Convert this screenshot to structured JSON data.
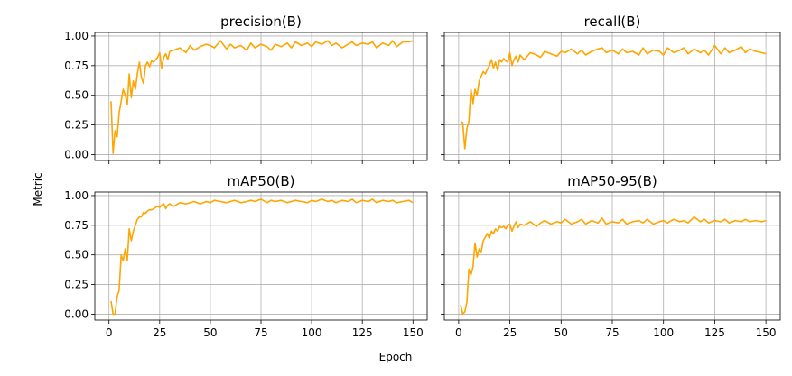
{
  "figure": {
    "xlabel": "Epoch",
    "ylabel": "Metric"
  },
  "chart_data": [
    {
      "type": "line",
      "title": "precision(B)",
      "xlim": [
        -7,
        157
      ],
      "ylim": [
        -0.05,
        1.03
      ],
      "xticks": [
        0,
        25,
        50,
        75,
        100,
        125,
        150
      ],
      "yticks": [
        "0.00",
        "0.25",
        "0.50",
        "0.75",
        "1.00"
      ],
      "show_xticklabels": false,
      "show_yticklabels": true,
      "grid": true,
      "line_color": "#FFA500",
      "x": [
        1,
        2,
        3,
        4,
        5,
        6,
        7,
        8,
        9,
        10,
        11,
        12,
        13,
        14,
        15,
        16,
        17,
        18,
        19,
        20,
        21,
        22,
        23,
        24,
        25,
        26,
        27,
        28,
        29,
        30,
        32,
        35,
        38,
        40,
        42,
        45,
        48,
        50,
        52,
        55,
        58,
        60,
        62,
        65,
        68,
        70,
        72,
        75,
        78,
        80,
        82,
        85,
        88,
        90,
        92,
        95,
        98,
        100,
        102,
        105,
        108,
        110,
        112,
        115,
        118,
        120,
        122,
        125,
        128,
        130,
        132,
        135,
        138,
        140,
        142,
        145,
        148,
        150
      ],
      "y": [
        0.45,
        0.01,
        0.2,
        0.15,
        0.35,
        0.45,
        0.55,
        0.5,
        0.42,
        0.68,
        0.48,
        0.62,
        0.55,
        0.68,
        0.78,
        0.65,
        0.6,
        0.75,
        0.78,
        0.74,
        0.79,
        0.78,
        0.8,
        0.82,
        0.86,
        0.73,
        0.82,
        0.85,
        0.8,
        0.87,
        0.88,
        0.9,
        0.86,
        0.92,
        0.88,
        0.91,
        0.93,
        0.92,
        0.9,
        0.96,
        0.89,
        0.93,
        0.9,
        0.92,
        0.88,
        0.94,
        0.9,
        0.93,
        0.91,
        0.88,
        0.93,
        0.91,
        0.94,
        0.9,
        0.95,
        0.92,
        0.94,
        0.91,
        0.95,
        0.93,
        0.96,
        0.92,
        0.94,
        0.9,
        0.93,
        0.95,
        0.92,
        0.94,
        0.93,
        0.95,
        0.9,
        0.94,
        0.92,
        0.96,
        0.91,
        0.95,
        0.95,
        0.96
      ]
    },
    {
      "type": "line",
      "title": "recall(B)",
      "xlim": [
        -7,
        157
      ],
      "ylim": [
        -0.05,
        1.03
      ],
      "xticks": [
        0,
        25,
        50,
        75,
        100,
        125,
        150
      ],
      "yticks": [
        "0.00",
        "0.25",
        "0.50",
        "0.75",
        "1.00"
      ],
      "show_xticklabels": false,
      "show_yticklabels": false,
      "grid": true,
      "line_color": "#FFA500",
      "x": [
        1,
        2,
        3,
        4,
        5,
        6,
        7,
        8,
        9,
        10,
        11,
        12,
        13,
        14,
        15,
        16,
        17,
        18,
        19,
        20,
        21,
        22,
        23,
        24,
        25,
        26,
        27,
        28,
        29,
        30,
        32,
        35,
        38,
        40,
        42,
        45,
        48,
        50,
        52,
        55,
        58,
        60,
        62,
        65,
        68,
        70,
        72,
        75,
        78,
        80,
        82,
        85,
        88,
        90,
        92,
        95,
        98,
        100,
        102,
        105,
        108,
        110,
        112,
        115,
        118,
        120,
        122,
        125,
        128,
        130,
        132,
        135,
        138,
        140,
        142,
        145,
        148,
        150
      ],
      "y": [
        0.28,
        0.27,
        0.05,
        0.22,
        0.28,
        0.55,
        0.43,
        0.55,
        0.5,
        0.62,
        0.66,
        0.7,
        0.68,
        0.72,
        0.75,
        0.8,
        0.73,
        0.78,
        0.71,
        0.8,
        0.78,
        0.81,
        0.79,
        0.78,
        0.86,
        0.75,
        0.8,
        0.83,
        0.78,
        0.84,
        0.8,
        0.86,
        0.84,
        0.82,
        0.87,
        0.85,
        0.83,
        0.87,
        0.86,
        0.89,
        0.85,
        0.88,
        0.84,
        0.87,
        0.89,
        0.9,
        0.86,
        0.88,
        0.85,
        0.89,
        0.86,
        0.87,
        0.84,
        0.9,
        0.85,
        0.88,
        0.87,
        0.84,
        0.9,
        0.86,
        0.88,
        0.9,
        0.85,
        0.89,
        0.86,
        0.88,
        0.84,
        0.92,
        0.85,
        0.9,
        0.86,
        0.88,
        0.91,
        0.86,
        0.89,
        0.87,
        0.86,
        0.85
      ]
    },
    {
      "type": "line",
      "title": "mAP50(B)",
      "xlim": [
        -7,
        157
      ],
      "ylim": [
        -0.05,
        1.03
      ],
      "xticks": [
        0,
        25,
        50,
        75,
        100,
        125,
        150
      ],
      "yticks": [
        "0.00",
        "0.25",
        "0.50",
        "0.75",
        "1.00"
      ],
      "show_xticklabels": true,
      "show_yticklabels": true,
      "grid": true,
      "line_color": "#FFA500",
      "x": [
        1,
        2,
        3,
        4,
        5,
        6,
        7,
        8,
        9,
        10,
        11,
        12,
        13,
        14,
        15,
        16,
        17,
        18,
        19,
        20,
        21,
        22,
        23,
        24,
        25,
        26,
        27,
        28,
        29,
        30,
        32,
        35,
        38,
        40,
        42,
        45,
        48,
        50,
        52,
        55,
        58,
        60,
        62,
        65,
        68,
        70,
        72,
        75,
        78,
        80,
        82,
        85,
        88,
        90,
        92,
        95,
        98,
        100,
        102,
        105,
        108,
        110,
        112,
        115,
        118,
        120,
        122,
        125,
        128,
        130,
        132,
        135,
        138,
        140,
        142,
        145,
        148,
        150
      ],
      "y": [
        0.11,
        0.0,
        0.0,
        0.15,
        0.2,
        0.5,
        0.45,
        0.55,
        0.45,
        0.72,
        0.62,
        0.7,
        0.75,
        0.8,
        0.82,
        0.82,
        0.86,
        0.85,
        0.87,
        0.88,
        0.88,
        0.89,
        0.9,
        0.91,
        0.9,
        0.92,
        0.93,
        0.89,
        0.92,
        0.93,
        0.91,
        0.94,
        0.93,
        0.94,
        0.95,
        0.93,
        0.95,
        0.94,
        0.96,
        0.95,
        0.94,
        0.95,
        0.96,
        0.94,
        0.95,
        0.96,
        0.95,
        0.97,
        0.94,
        0.96,
        0.95,
        0.96,
        0.94,
        0.95,
        0.96,
        0.95,
        0.94,
        0.96,
        0.95,
        0.97,
        0.95,
        0.96,
        0.94,
        0.96,
        0.95,
        0.97,
        0.94,
        0.96,
        0.95,
        0.97,
        0.94,
        0.96,
        0.95,
        0.96,
        0.94,
        0.95,
        0.96,
        0.94
      ]
    },
    {
      "type": "line",
      "title": "mAP50-95(B)",
      "xlim": [
        -7,
        157
      ],
      "ylim": [
        -0.05,
        1.03
      ],
      "xticks": [
        0,
        25,
        50,
        75,
        100,
        125,
        150
      ],
      "yticks": [
        "0.00",
        "0.25",
        "0.50",
        "0.75",
        "1.00"
      ],
      "show_xticklabels": true,
      "show_yticklabels": false,
      "grid": true,
      "line_color": "#FFA500",
      "x": [
        1,
        2,
        3,
        4,
        5,
        6,
        7,
        8,
        9,
        10,
        11,
        12,
        13,
        14,
        15,
        16,
        17,
        18,
        19,
        20,
        21,
        22,
        23,
        24,
        25,
        26,
        27,
        28,
        29,
        30,
        32,
        35,
        38,
        40,
        42,
        45,
        48,
        50,
        52,
        55,
        58,
        60,
        62,
        65,
        68,
        70,
        72,
        75,
        78,
        80,
        82,
        85,
        88,
        90,
        92,
        95,
        98,
        100,
        102,
        105,
        108,
        110,
        112,
        115,
        118,
        120,
        122,
        125,
        128,
        130,
        132,
        135,
        138,
        140,
        142,
        145,
        148,
        150
      ],
      "y": [
        0.08,
        0.0,
        0.02,
        0.1,
        0.38,
        0.33,
        0.4,
        0.6,
        0.48,
        0.55,
        0.52,
        0.62,
        0.65,
        0.68,
        0.64,
        0.7,
        0.68,
        0.72,
        0.7,
        0.74,
        0.73,
        0.74,
        0.72,
        0.75,
        0.76,
        0.7,
        0.74,
        0.78,
        0.73,
        0.76,
        0.75,
        0.78,
        0.74,
        0.77,
        0.79,
        0.76,
        0.78,
        0.77,
        0.8,
        0.76,
        0.78,
        0.8,
        0.76,
        0.79,
        0.77,
        0.81,
        0.76,
        0.78,
        0.77,
        0.8,
        0.76,
        0.78,
        0.79,
        0.77,
        0.8,
        0.76,
        0.78,
        0.79,
        0.77,
        0.8,
        0.78,
        0.79,
        0.77,
        0.82,
        0.78,
        0.8,
        0.77,
        0.79,
        0.78,
        0.8,
        0.77,
        0.79,
        0.78,
        0.8,
        0.78,
        0.79,
        0.78,
        0.79
      ]
    }
  ]
}
